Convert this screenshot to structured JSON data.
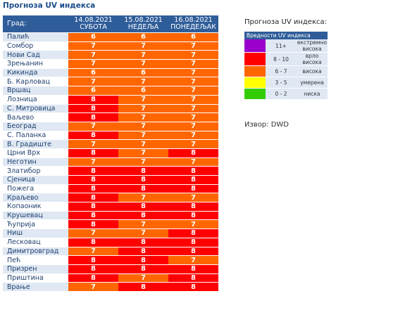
{
  "title": "Прогноза UV индекса",
  "table": {
    "city_header": "Град:",
    "days": [
      {
        "date": "14.08.2021",
        "day": "СУБОТА"
      },
      {
        "date": "15.08.2021",
        "day": "НЕДЕЉА"
      },
      {
        "date": "16.08.2021",
        "day": "ПОНЕДЕЉАК"
      }
    ],
    "rows": [
      {
        "city": "Палић",
        "values": [
          "6",
          "6",
          "6"
        ]
      },
      {
        "city": "Сомбор",
        "values": [
          "7",
          "7",
          "7"
        ]
      },
      {
        "city": "Нови Сад",
        "values": [
          "7",
          "7",
          "7"
        ]
      },
      {
        "city": "Зрењанин",
        "values": [
          "7",
          "7",
          "7"
        ]
      },
      {
        "city": "Кикинда",
        "values": [
          "6",
          "6",
          "7"
        ]
      },
      {
        "city": "Б. Карловац",
        "values": [
          "7",
          "7",
          "7"
        ]
      },
      {
        "city": "Вршац",
        "values": [
          "6",
          "6",
          "7"
        ]
      },
      {
        "city": "Лозница",
        "values": [
          "8",
          "7",
          "7"
        ]
      },
      {
        "city": "С. Митровица",
        "values": [
          "8",
          "7",
          "7"
        ]
      },
      {
        "city": "Ваљево",
        "values": [
          "8",
          "7",
          "7"
        ]
      },
      {
        "city": "Београд",
        "values": [
          "7",
          "7",
          "7"
        ]
      },
      {
        "city": "С. Паланка",
        "values": [
          "8",
          "7",
          "7"
        ]
      },
      {
        "city": "В. Градиште",
        "values": [
          "7",
          "7",
          "7"
        ]
      },
      {
        "city": "Црни Врх",
        "values": [
          "8",
          "7",
          "8"
        ]
      },
      {
        "city": "Неготин",
        "values": [
          "7",
          "7",
          "7"
        ]
      },
      {
        "city": "Златибор",
        "values": [
          "8",
          "8",
          "8"
        ]
      },
      {
        "city": "Сјеница",
        "values": [
          "8",
          "8",
          "8"
        ]
      },
      {
        "city": "Пожега",
        "values": [
          "8",
          "8",
          "8"
        ]
      },
      {
        "city": "Краљево",
        "values": [
          "8",
          "7",
          "7"
        ]
      },
      {
        "city": "Копаоник",
        "values": [
          "8",
          "8",
          "8"
        ]
      },
      {
        "city": "Крушевац",
        "values": [
          "8",
          "8",
          "8"
        ]
      },
      {
        "city": "Ћуприја",
        "values": [
          "8",
          "7",
          "7"
        ]
      },
      {
        "city": "Ниш",
        "values": [
          "7",
          "7",
          "8"
        ]
      },
      {
        "city": "Лесковац",
        "values": [
          "8",
          "8",
          "8"
        ]
      },
      {
        "city": "Димитровград",
        "values": [
          "7",
          "8",
          "8"
        ]
      },
      {
        "city": "Пећ",
        "values": [
          "8",
          "8",
          "7"
        ]
      },
      {
        "city": "Призрен",
        "values": [
          "8",
          "8",
          "8"
        ]
      },
      {
        "city": "Приштина",
        "values": [
          "8",
          "7",
          "8"
        ]
      },
      {
        "city": "Врање",
        "values": [
          "7",
          "8",
          "8"
        ]
      }
    ]
  },
  "legend": {
    "title": "Прогноза UV индекса:",
    "header": "Вредности UV индекса",
    "items": [
      {
        "range": "11+",
        "label": "екстремно висока",
        "color": "#9900cc"
      },
      {
        "range": "8 - 10",
        "label": "врло висока",
        "color": "#ff0000"
      },
      {
        "range": "6 - 7",
        "label": "висока",
        "color": "#ff6600"
      },
      {
        "range": "3 - 5",
        "label": "умерена",
        "color": "#ffff00"
      },
      {
        "range": "0 - 2",
        "label": "ниска",
        "color": "#33cc00"
      }
    ]
  },
  "source": "Извор: DWD",
  "colors": {
    "high": "#ff6600",
    "very_high": "#ff0000"
  }
}
